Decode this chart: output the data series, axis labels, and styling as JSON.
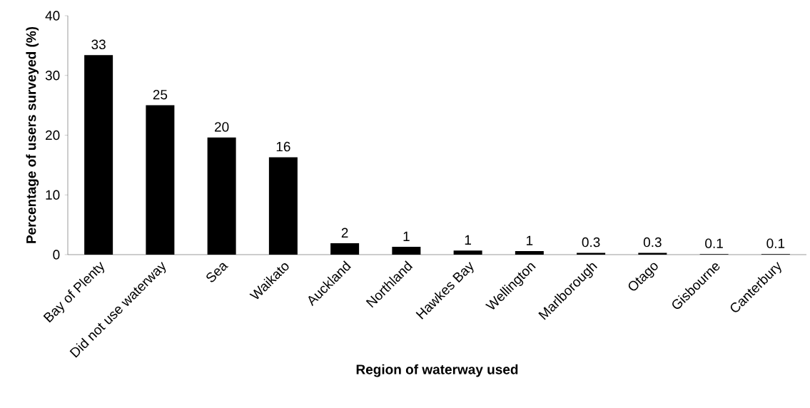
{
  "chart_data": {
    "type": "bar",
    "xlabel": "Region of waterway used",
    "ylabel": "Percentage of users surveyed (%)",
    "categories": [
      "Bay of Plenty",
      "Did not use waterway",
      "Sea",
      "Waikato",
      "Auckland",
      "Northland",
      "Hawkes Bay",
      "Wellington",
      "Marlborough",
      "Otago",
      "Gisbourne",
      "Canterbury"
    ],
    "values": [
      33.4,
      25,
      19.6,
      16.3,
      1.9,
      1.3,
      0.7,
      0.6,
      0.3,
      0.3,
      0.1,
      0.1
    ],
    "value_labels": [
      "33",
      "25",
      "20",
      "16",
      "2",
      "1",
      "1",
      "1",
      "0.3",
      "0.3",
      "0.1",
      "0.1"
    ],
    "color": "#000000",
    "ylim": [
      0,
      40
    ],
    "yticks": [
      0,
      10,
      20,
      30,
      40
    ]
  }
}
